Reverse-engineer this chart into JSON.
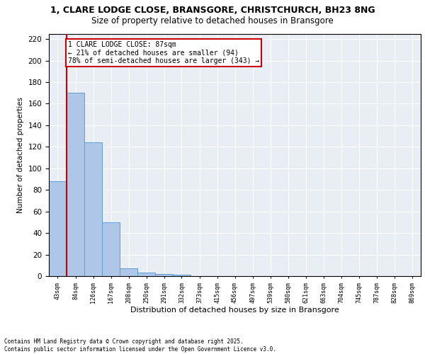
{
  "title_line1": "1, CLARE LODGE CLOSE, BRANSGORE, CHRISTCHURCH, BH23 8NG",
  "title_line2": "Size of property relative to detached houses in Bransgore",
  "xlabel": "Distribution of detached houses by size in Bransgore",
  "ylabel": "Number of detached properties",
  "bar_values": [
    88,
    170,
    124,
    50,
    7,
    3,
    2,
    1,
    0,
    0,
    0,
    0,
    0,
    0,
    0,
    0,
    0,
    0,
    0,
    0
  ],
  "bin_labels": [
    "43sqm",
    "84sqm",
    "126sqm",
    "167sqm",
    "208sqm",
    "250sqm",
    "291sqm",
    "332sqm",
    "373sqm",
    "415sqm",
    "456sqm",
    "497sqm",
    "539sqm",
    "580sqm",
    "621sqm",
    "663sqm",
    "704sqm",
    "745sqm",
    "787sqm",
    "828sqm",
    "869sqm"
  ],
  "bar_color": "#aec6e8",
  "bar_edge_color": "#5a9fd4",
  "vline_color": "#cc0000",
  "annotation_text": "1 CLARE LODGE CLOSE: 87sqm\n← 21% of detached houses are smaller (94)\n78% of semi-detached houses are larger (343) →",
  "annotation_box_color": "#cc0000",
  "ylim": [
    0,
    225
  ],
  "yticks": [
    0,
    20,
    40,
    60,
    80,
    100,
    120,
    140,
    160,
    180,
    200,
    220
  ],
  "bin_edges": [
    43,
    84,
    126,
    167,
    208,
    250,
    291,
    332,
    373,
    415,
    456,
    497,
    539,
    580,
    621,
    663,
    704,
    745,
    787,
    828,
    869
  ],
  "background_color": "#e8eef4",
  "footer_text": "Contains HM Land Registry data © Crown copyright and database right 2025.\nContains public sector information licensed under the Open Government Licence v3.0.",
  "title_fontsize": 9,
  "subtitle_fontsize": 8.5
}
